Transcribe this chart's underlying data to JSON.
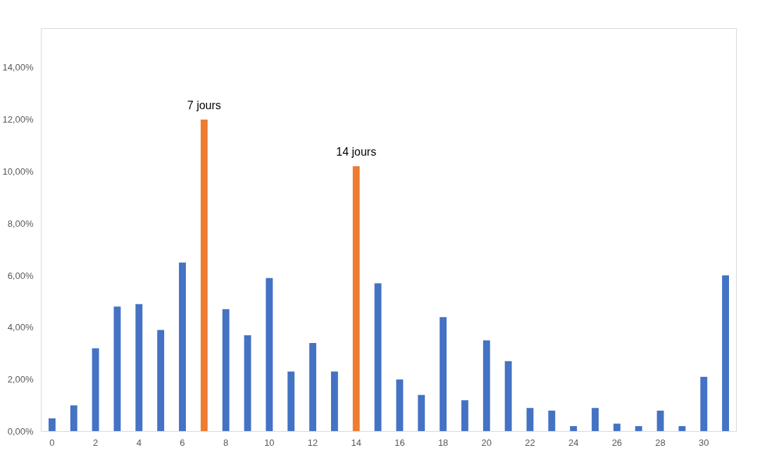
{
  "chart_data": {
    "type": "bar",
    "x": [
      0,
      1,
      2,
      3,
      4,
      5,
      6,
      7,
      8,
      9,
      10,
      11,
      12,
      13,
      14,
      15,
      16,
      17,
      18,
      19,
      20,
      21,
      22,
      23,
      24,
      25,
      26,
      27,
      28,
      29,
      30,
      31
    ],
    "values": [
      0.5,
      1.0,
      3.2,
      4.8,
      4.9,
      3.9,
      6.5,
      12.0,
      4.7,
      3.7,
      5.9,
      2.3,
      3.4,
      2.3,
      10.2,
      5.7,
      2.0,
      1.4,
      4.4,
      1.2,
      3.5,
      2.7,
      0.9,
      0.8,
      0.2,
      0.9,
      0.3,
      0.2,
      0.8,
      0.2,
      2.1,
      6.0
    ],
    "colors": [
      "#4472c4",
      "#4472c4",
      "#4472c4",
      "#4472c4",
      "#4472c4",
      "#4472c4",
      "#4472c4",
      "#ed7d31",
      "#4472c4",
      "#4472c4",
      "#4472c4",
      "#4472c4",
      "#4472c4",
      "#4472c4",
      "#ed7d31",
      "#4472c4",
      "#4472c4",
      "#4472c4",
      "#4472c4",
      "#4472c4",
      "#4472c4",
      "#4472c4",
      "#4472c4",
      "#4472c4",
      "#4472c4",
      "#4472c4",
      "#4472c4",
      "#4472c4",
      "#4472c4",
      "#4472c4",
      "#4472c4",
      "#4472c4"
    ],
    "xlim": [
      -0.5,
      31.5
    ],
    "xticks": [
      0,
      2,
      4,
      6,
      8,
      10,
      12,
      14,
      16,
      18,
      20,
      22,
      24,
      26,
      28,
      30
    ],
    "ylim": [
      0,
      15.5
    ],
    "yticks": [
      {
        "value": 0,
        "label": "0,00%"
      },
      {
        "value": 2,
        "label": "2,00%"
      },
      {
        "value": 4,
        "label": "4,00%"
      },
      {
        "value": 6,
        "label": "6,00%"
      },
      {
        "value": 8,
        "label": "8,00%"
      },
      {
        "value": 10,
        "label": "10,00%"
      },
      {
        "value": 12,
        "label": "12,00%"
      },
      {
        "value": 14,
        "label": "14,00%"
      }
    ],
    "annotations": [
      {
        "text": "7 jours",
        "x": 7,
        "y": 12.0
      },
      {
        "text": "14 jours",
        "x": 14,
        "y": 10.2
      }
    ],
    "grid": false
  }
}
